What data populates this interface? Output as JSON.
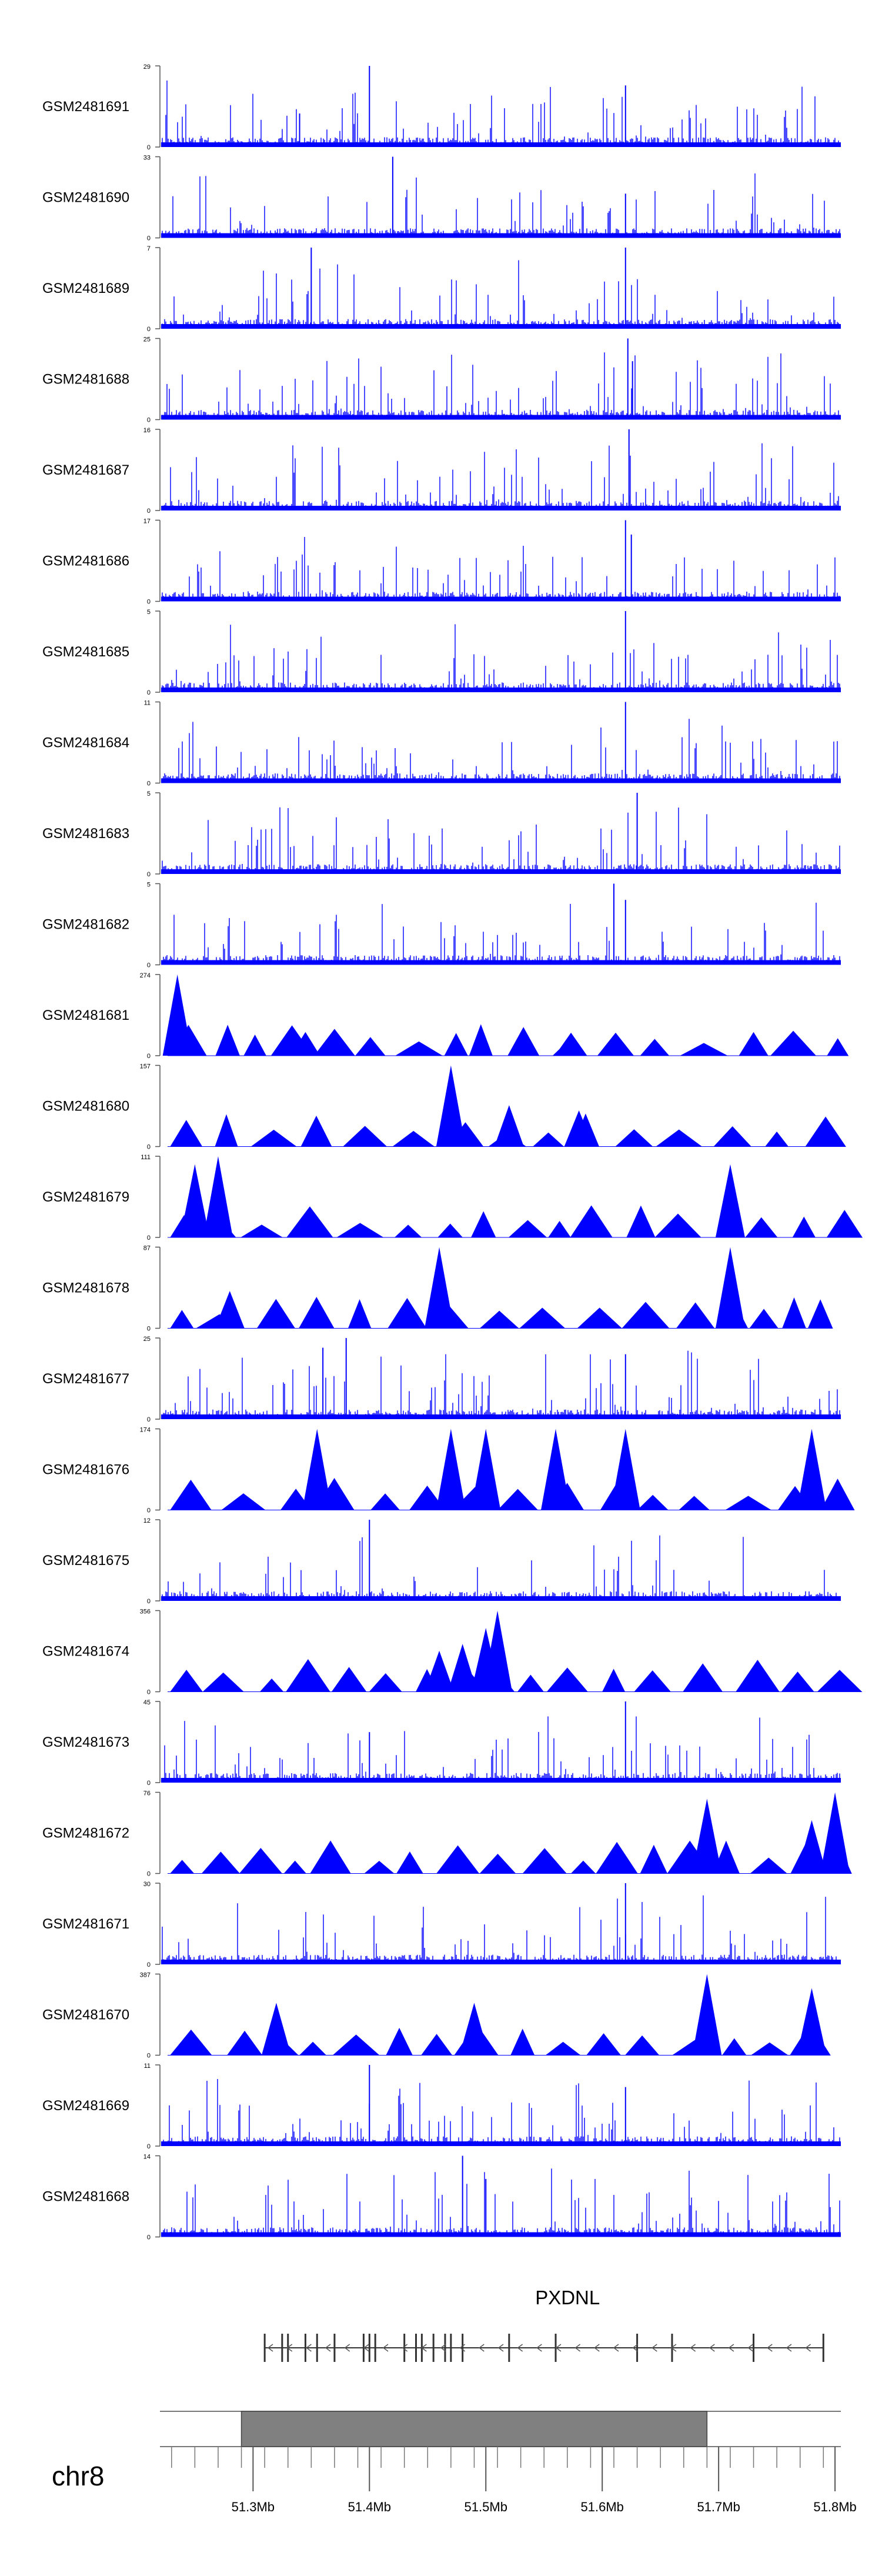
{
  "chart_data": {
    "type": "genome-tracks",
    "chromosome": "chr8",
    "region": [
      51.22,
      51.805
    ],
    "genome_axis": {
      "unit": "Mb",
      "ticks": [
        51.3,
        51.4,
        51.5,
        51.6,
        51.7,
        51.8
      ],
      "tick_labels": [
        "51.3Mb",
        "51.4Mb",
        "51.5Mb",
        "51.6Mb",
        "51.7Mb",
        "51.8Mb"
      ]
    },
    "ideogram_highlight": [
      51.29,
      51.69
    ],
    "gene": {
      "name": "PXDNL",
      "strand": "-",
      "range": [
        51.31,
        51.79
      ]
    },
    "colors": {
      "signal": "#0000ff",
      "axis": "#555555",
      "highlight": "#808080"
    },
    "tracks": [
      {
        "name": "GSM2481691",
        "ymin": 0,
        "ymax": 29,
        "style": "dense",
        "peaks": [
          [
            51.4,
            29
          ],
          [
            51.62,
            22
          ],
          [
            51.34,
            12
          ]
        ]
      },
      {
        "name": "GSM2481690",
        "ymin": 0,
        "ymax": 33,
        "style": "dense",
        "peaks": [
          [
            51.42,
            33
          ],
          [
            51.62,
            18
          ]
        ]
      },
      {
        "name": "GSM2481689",
        "ymin": 0,
        "ymax": 7,
        "style": "dense",
        "peaks": [
          [
            51.35,
            7
          ],
          [
            51.62,
            7
          ]
        ]
      },
      {
        "name": "GSM2481688",
        "ymin": 0,
        "ymax": 25,
        "style": "dense",
        "peaks": [
          [
            51.622,
            25
          ],
          [
            51.626,
            18
          ]
        ]
      },
      {
        "name": "GSM2481687",
        "ymin": 0,
        "ymax": 16,
        "style": "dense",
        "peaks": [
          [
            51.623,
            16
          ]
        ]
      },
      {
        "name": "GSM2481686",
        "ymin": 0,
        "ymax": 17,
        "style": "dense",
        "peaks": [
          [
            51.62,
            17
          ],
          [
            51.625,
            14
          ]
        ]
      },
      {
        "name": "GSM2481685",
        "ymin": 0,
        "ymax": 5,
        "style": "dense",
        "peaks": [
          [
            51.62,
            5
          ]
        ]
      },
      {
        "name": "GSM2481684",
        "ymin": 0,
        "ymax": 11,
        "style": "dense",
        "peaks": [
          [
            51.62,
            11
          ]
        ]
      },
      {
        "name": "GSM2481683",
        "ymin": 0,
        "ymax": 5,
        "style": "dense",
        "peaks": [
          [
            51.63,
            5
          ]
        ]
      },
      {
        "name": "GSM2481682",
        "ymin": 0,
        "ymax": 5,
        "style": "dense",
        "peaks": [
          [
            51.61,
            5
          ],
          [
            51.62,
            4
          ]
        ]
      },
      {
        "name": "GSM2481681",
        "ymin": 0,
        "ymax": 274,
        "style": "sparse",
        "peaks": [
          [
            51.235,
            274
          ],
          [
            51.345,
            80
          ],
          [
            51.57,
            48
          ],
          [
            51.73,
            80
          ]
        ]
      },
      {
        "name": "GSM2481680",
        "ymin": 0,
        "ymax": 157,
        "style": "sparse",
        "peaks": [
          [
            51.47,
            157
          ],
          [
            51.52,
            80
          ],
          [
            51.58,
            70
          ]
        ]
      },
      {
        "name": "GSM2481679",
        "ymin": 0,
        "ymax": 111,
        "style": "sparse",
        "peaks": [
          [
            51.27,
            111
          ],
          [
            51.25,
            100
          ],
          [
            51.71,
            100
          ]
        ]
      },
      {
        "name": "GSM2481678",
        "ymin": 0,
        "ymax": 87,
        "style": "sparse",
        "peaks": [
          [
            51.46,
            87
          ],
          [
            51.71,
            87
          ],
          [
            51.28,
            40
          ]
        ]
      },
      {
        "name": "GSM2481677",
        "ymin": 0,
        "ymax": 25,
        "style": "dense",
        "peaks": [
          [
            51.38,
            25
          ],
          [
            51.36,
            22
          ],
          [
            51.62,
            20
          ]
        ]
      },
      {
        "name": "GSM2481676",
        "ymin": 0,
        "ymax": 174,
        "style": "sparse",
        "peaks": [
          [
            51.355,
            174
          ],
          [
            51.47,
            174
          ],
          [
            51.5,
            174
          ],
          [
            51.56,
            174
          ],
          [
            51.62,
            174
          ],
          [
            51.78,
            174
          ]
        ]
      },
      {
        "name": "GSM2481675",
        "ymin": 0,
        "ymax": 12,
        "style": "dense",
        "peaks": [
          [
            51.4,
            12
          ]
        ]
      },
      {
        "name": "GSM2481674",
        "ymin": 0,
        "ymax": 356,
        "style": "sparse",
        "peaks": [
          [
            51.51,
            356
          ],
          [
            51.5,
            280
          ],
          [
            51.48,
            210
          ],
          [
            51.46,
            180
          ]
        ]
      },
      {
        "name": "GSM2481673",
        "ymin": 0,
        "ymax": 45,
        "style": "dense",
        "peaks": [
          [
            51.62,
            45
          ],
          [
            51.4,
            28
          ]
        ]
      },
      {
        "name": "GSM2481672",
        "ymin": 0,
        "ymax": 76,
        "style": "sparse",
        "peaks": [
          [
            51.8,
            76
          ],
          [
            51.69,
            70
          ],
          [
            51.78,
            50
          ]
        ]
      },
      {
        "name": "GSM2481671",
        "ymin": 0,
        "ymax": 30,
        "style": "dense",
        "peaks": [
          [
            51.62,
            30
          ]
        ]
      },
      {
        "name": "GSM2481670",
        "ymin": 0,
        "ymax": 387,
        "style": "sparse",
        "peaks": [
          [
            51.69,
            387
          ],
          [
            51.32,
            250
          ],
          [
            51.49,
            250
          ],
          [
            51.78,
            320
          ]
        ]
      },
      {
        "name": "GSM2481669",
        "ymin": 0,
        "ymax": 11,
        "style": "dense",
        "peaks": [
          [
            51.4,
            11
          ],
          [
            51.62,
            8
          ]
        ]
      },
      {
        "name": "GSM2481668",
        "ymin": 0,
        "ymax": 14,
        "style": "dense",
        "peaks": [
          [
            51.48,
            14
          ],
          [
            51.5,
            10
          ]
        ]
      }
    ]
  }
}
